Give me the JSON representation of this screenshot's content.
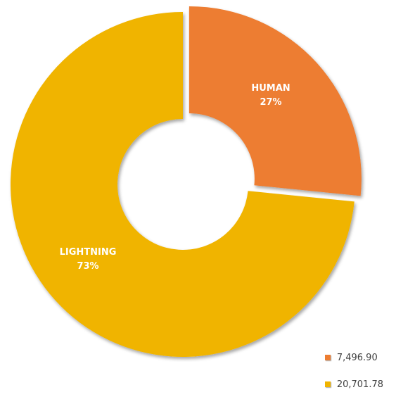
{
  "chart_data": {
    "type": "pie",
    "variant": "exploded-donut",
    "title": "",
    "slices": [
      {
        "label": "HUMAN",
        "value": 7496.9,
        "value_label": "7,496.90",
        "percent_label": "27%",
        "color": "#ED7D31"
      },
      {
        "label": "LIGHTNING",
        "value": 20701.78,
        "value_label": "20,701.78",
        "percent_label": "73%",
        "color": "#F0B400"
      }
    ],
    "legend_placement": "bottom-right"
  }
}
